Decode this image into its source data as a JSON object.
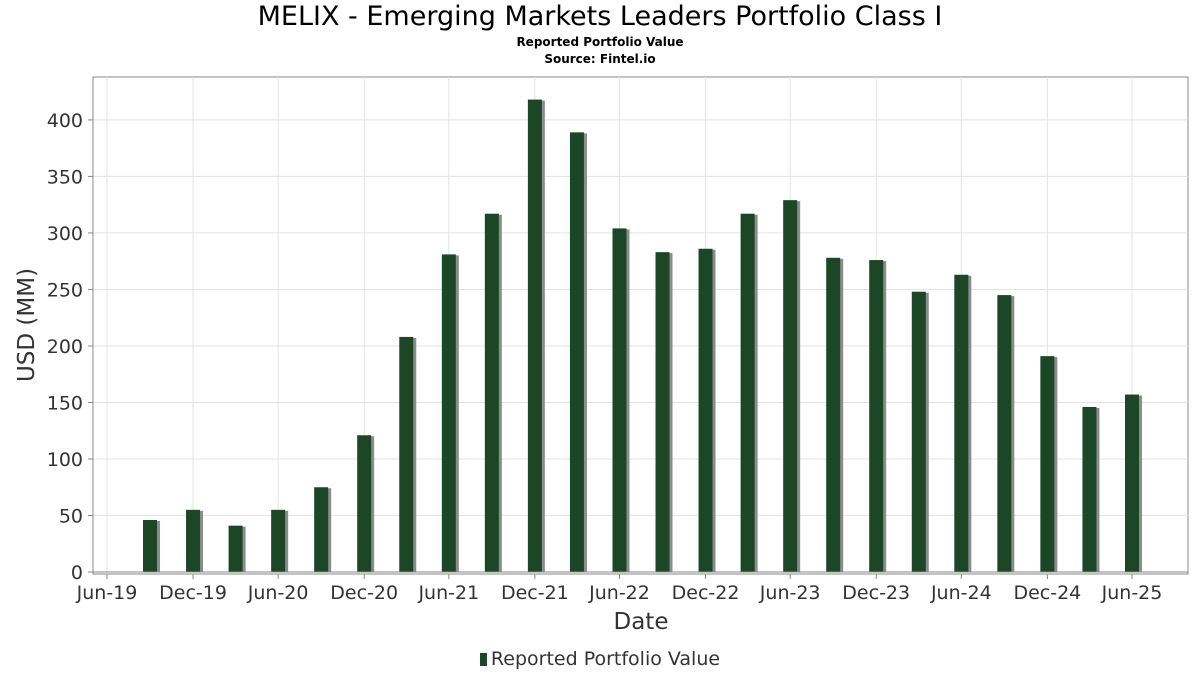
{
  "chart_data": {
    "type": "bar",
    "title": "MELIX - Emerging Markets Leaders Portfolio Class I",
    "subtitles": [
      "Reported Portfolio Value",
      "Source: Fintel.io"
    ],
    "xlabel": "Date",
    "ylabel": "USD (MM)",
    "x_ticks": [
      "Jun-19",
      "Dec-19",
      "Jun-20",
      "Dec-20",
      "Jun-21",
      "Dec-21",
      "Jun-22",
      "Dec-22",
      "Jun-23",
      "Dec-23",
      "Jun-24",
      "Dec-24",
      "Jun-25"
    ],
    "y_ticks": [
      0,
      50,
      100,
      150,
      200,
      250,
      300,
      350,
      400
    ],
    "ylim": [
      0,
      435
    ],
    "grid": true,
    "legend_position": "bottom",
    "bar_color": "#1b4726",
    "shadow_color": "#8c8c8c",
    "series": [
      {
        "name": "Reported Portfolio Value",
        "dates": [
          "2019-09-30",
          "2019-12-31",
          "2020-03-31",
          "2020-06-30",
          "2020-09-30",
          "2020-12-31",
          "2021-03-31",
          "2021-06-30",
          "2021-09-30",
          "2021-12-31",
          "2022-03-31",
          "2022-06-30",
          "2022-09-30",
          "2022-12-31",
          "2023-03-31",
          "2023-06-30",
          "2023-09-30",
          "2023-12-31",
          "2024-03-31",
          "2024-06-30",
          "2024-09-30",
          "2024-12-31",
          "2025-03-31",
          "2025-06-30"
        ],
        "values": [
          46,
          55,
          41,
          55,
          75,
          121,
          208,
          281,
          317,
          418,
          389,
          304,
          283,
          286,
          317,
          329,
          278,
          276,
          248,
          263,
          245,
          191,
          146,
          157
        ]
      }
    ]
  }
}
